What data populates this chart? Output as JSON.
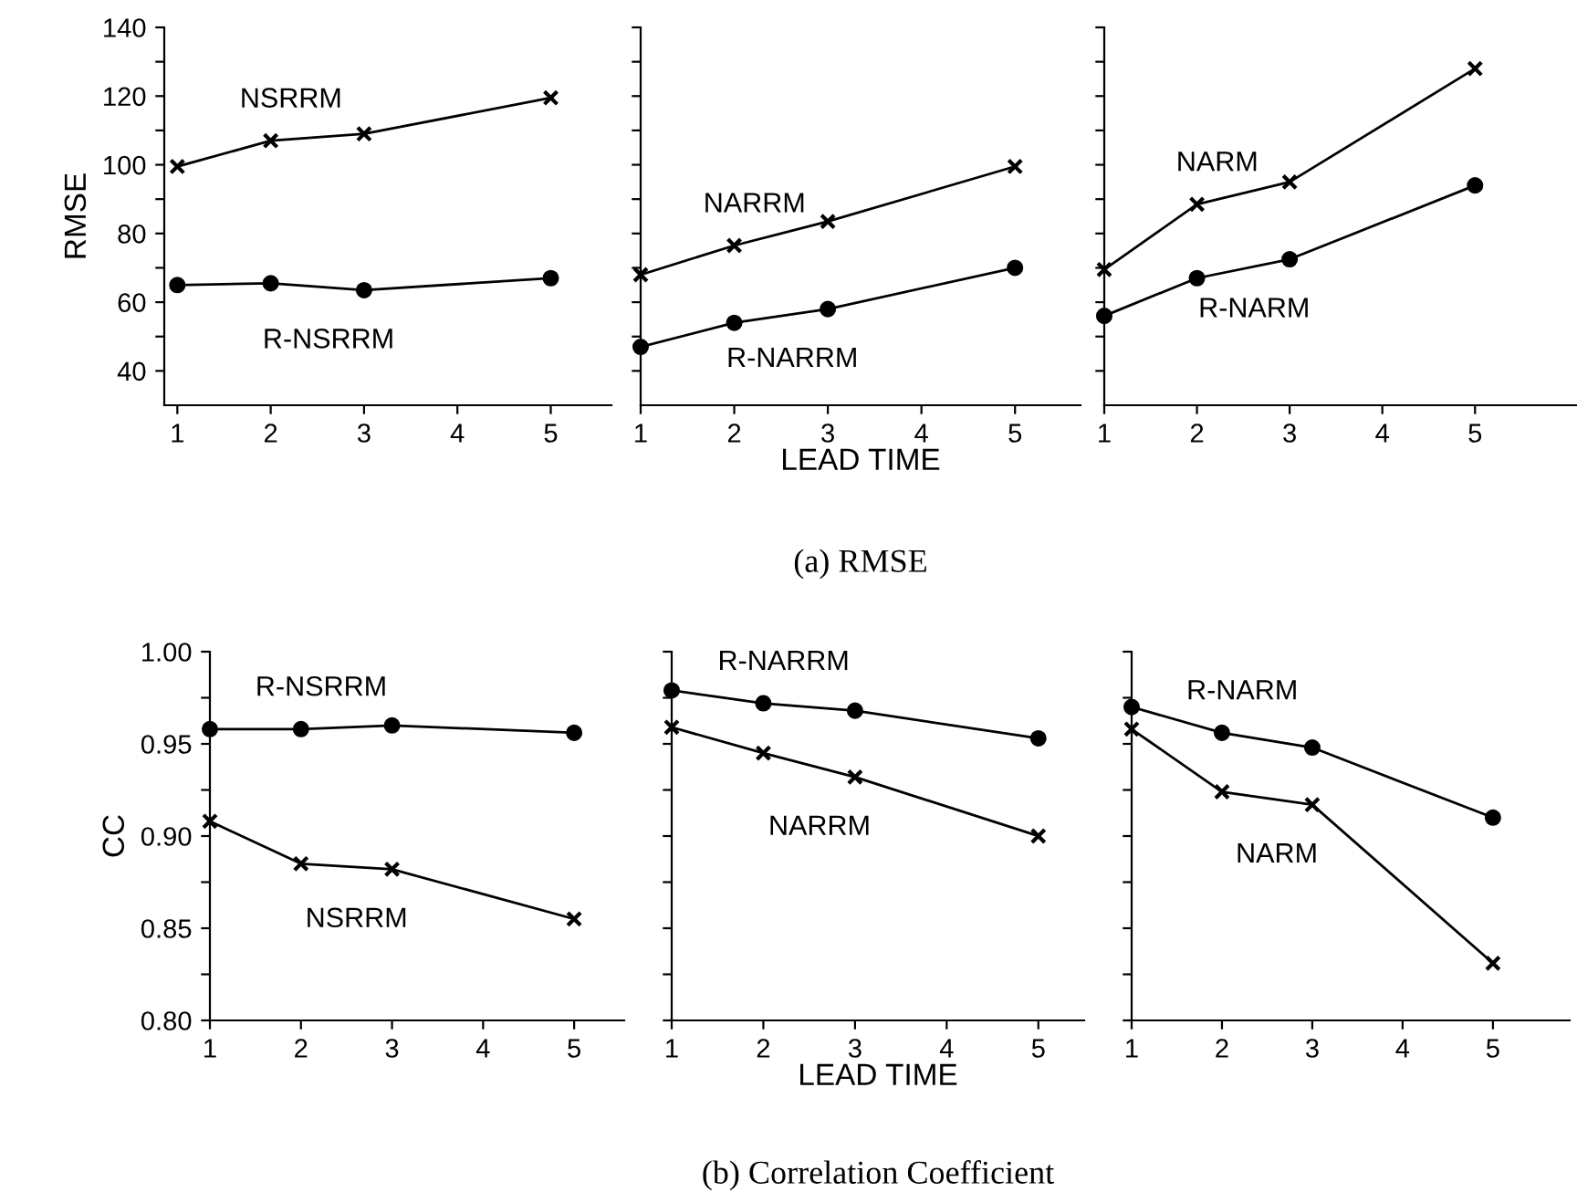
{
  "chart_data": [
    {
      "type": "line",
      "ylabel": "RMSE",
      "x": [
        1,
        2,
        3,
        5
      ],
      "xlim": [
        0.86,
        5.65
      ],
      "xticks": [
        1,
        2,
        3,
        4,
        5
      ],
      "ylim": [
        30,
        140
      ],
      "yticks": [
        40,
        {
          "value": 50,
          "label": null
        },
        60,
        {
          "value": 70,
          "label": null
        },
        80,
        {
          "value": 90,
          "label": null
        },
        100,
        {
          "value": 110,
          "label": null
        },
        120,
        {
          "value": 130,
          "label": null
        },
        140
      ],
      "series": [
        {
          "name": "NSRRM",
          "color": "#000000",
          "marker": "cross",
          "values": [
            99.5,
            107,
            109,
            119.5
          ]
        },
        {
          "name": "R-NSRRM",
          "color": "#000000",
          "marker": "circle",
          "values": [
            65,
            65.5,
            63.5,
            67
          ]
        }
      ]
    },
    {
      "type": "line",
      "xlabel": "LEAD TIME",
      "annotations": [
        "(a) RMSE"
      ],
      "tick_labels": "x",
      "x": [
        1,
        2,
        3,
        5
      ],
      "xlim": [
        1.0,
        5.7
      ],
      "xticks": [
        1,
        2,
        3,
        4,
        5
      ],
      "ylim": [
        30,
        140
      ],
      "yticks": [
        40,
        {
          "value": 50,
          "label": null
        },
        60,
        {
          "value": 70,
          "label": null
        },
        80,
        {
          "value": 90,
          "label": null
        },
        100,
        {
          "value": 110,
          "label": null
        },
        120,
        {
          "value": 130,
          "label": null
        },
        140
      ],
      "series": [
        {
          "name": "NARRM",
          "color": "#000000",
          "marker": "cross",
          "values": [
            68,
            76.5,
            83.5,
            99.5
          ]
        },
        {
          "name": "R-NARRM",
          "color": "#000000",
          "marker": "circle",
          "values": [
            47,
            54,
            58,
            70
          ]
        }
      ]
    },
    {
      "type": "line",
      "tick_labels": "x",
      "x": [
        1,
        2,
        3,
        5
      ],
      "xlim": [
        1.0,
        6.1
      ],
      "xticks": [
        1,
        2,
        3,
        4,
        5
      ],
      "ylim": [
        30,
        140
      ],
      "yticks": [
        40,
        {
          "value": 50,
          "label": null
        },
        60,
        {
          "value": 70,
          "label": null
        },
        80,
        {
          "value": 90,
          "label": null
        },
        100,
        {
          "value": 110,
          "label": null
        },
        120,
        {
          "value": 130,
          "label": null
        },
        140
      ],
      "series": [
        {
          "name": "NARM",
          "color": "#000000",
          "marker": "cross",
          "values": [
            69.5,
            88.5,
            95,
            128
          ]
        },
        {
          "name": "R-NARM",
          "color": "#000000",
          "marker": "circle",
          "values": [
            56,
            67,
            72.5,
            94
          ]
        }
      ]
    },
    {
      "type": "line",
      "ylabel": "CC",
      "x": [
        1,
        2,
        3,
        5
      ],
      "xlim": [
        1.0,
        5.55
      ],
      "xticks": [
        1,
        2,
        3,
        4,
        5
      ],
      "ylim": [
        0.8,
        1.0
      ],
      "yticks": [
        {
          "value": 0.8,
          "label": "0.80"
        },
        {
          "value": 0.825,
          "label": null
        },
        {
          "value": 0.85,
          "label": "0.85"
        },
        {
          "value": 0.875,
          "label": null
        },
        {
          "value": 0.9,
          "label": "0.90"
        },
        {
          "value": 0.925,
          "label": null
        },
        {
          "value": 0.95,
          "label": "0.95"
        },
        {
          "value": 0.975,
          "label": null
        },
        {
          "value": 1.0,
          "label": "1.00"
        }
      ],
      "series": [
        {
          "name": "R-NSRRM",
          "color": "#000000",
          "marker": "circle",
          "values": [
            0.958,
            0.958,
            0.96,
            0.956
          ]
        },
        {
          "name": "NSRRM",
          "color": "#000000",
          "marker": "cross",
          "values": [
            0.908,
            0.885,
            0.882,
            0.855
          ]
        }
      ]
    },
    {
      "type": "line",
      "xlabel": "LEAD TIME",
      "annotations": [
        "(b) Correlation Coefficient"
      ],
      "tick_labels": "x",
      "x": [
        1,
        2,
        3,
        5
      ],
      "xlim": [
        1.0,
        5.5
      ],
      "xticks": [
        1,
        2,
        3,
        4,
        5
      ],
      "ylim": [
        0.8,
        1.0
      ],
      "yticks": [
        0.8,
        {
          "value": 0.825,
          "label": null
        },
        0.85,
        {
          "value": 0.875,
          "label": null
        },
        0.9,
        {
          "value": 0.925,
          "label": null
        },
        0.95,
        {
          "value": 0.975,
          "label": null
        },
        1.0
      ],
      "series": [
        {
          "name": "R-NARRM",
          "color": "#000000",
          "marker": "circle",
          "values": [
            0.979,
            0.972,
            0.968,
            0.953
          ]
        },
        {
          "name": "NARRM",
          "color": "#000000",
          "marker": "cross",
          "values": [
            0.959,
            0.945,
            0.932,
            0.9
          ]
        }
      ]
    },
    {
      "type": "line",
      "tick_labels": "x",
      "x": [
        1,
        2,
        3,
        5
      ],
      "xlim": [
        1.0,
        5.85
      ],
      "xticks": [
        1,
        2,
        3,
        4,
        5
      ],
      "ylim": [
        0.8,
        1.0
      ],
      "yticks": [
        0.8,
        {
          "value": 0.825,
          "label": null
        },
        0.85,
        {
          "value": 0.875,
          "label": null
        },
        0.9,
        {
          "value": 0.925,
          "label": null
        },
        0.95,
        {
          "value": 0.975,
          "label": null
        },
        1.0
      ],
      "series": [
        {
          "name": "R-NARM",
          "color": "#000000",
          "marker": "circle",
          "values": [
            0.97,
            0.956,
            0.948,
            0.91
          ]
        },
        {
          "name": "NARM",
          "color": "#000000",
          "marker": "cross",
          "values": [
            0.958,
            0.924,
            0.917,
            0.831
          ]
        }
      ]
    }
  ]
}
